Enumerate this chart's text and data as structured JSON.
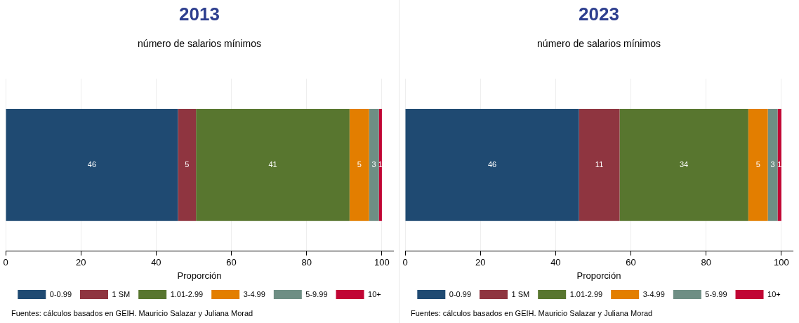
{
  "chart_data": [
    {
      "type": "bar",
      "orientation": "horizontal",
      "stacked": true,
      "title": "2013",
      "subtitle": "número de salarios mínimos",
      "xlabel": "Proporción",
      "categories": [
        null
      ],
      "xlim": [
        0,
        103
      ],
      "xticks": [
        0,
        20,
        40,
        60,
        80,
        100
      ],
      "grid": "x",
      "legend": "bottom",
      "series": [
        {
          "name": "0-0.99",
          "color": "#1f4a72",
          "values": [
            45.8
          ],
          "value_labels": [
            "46"
          ]
        },
        {
          "name": "1 SM",
          "color": "#8f3540",
          "values": [
            4.8
          ],
          "value_labels": [
            "5"
          ]
        },
        {
          "name": "1.01-2.99",
          "color": "#58762f",
          "values": [
            40.8
          ],
          "value_labels": [
            "41"
          ]
        },
        {
          "name": "3-4.99",
          "color": "#e37e00",
          "values": [
            5.2
          ],
          "value_labels": [
            "5"
          ]
        },
        {
          "name": "5-9.99",
          "color": "#6e8e84",
          "values": [
            2.6
          ],
          "value_labels": [
            "3"
          ]
        },
        {
          "name": "10+",
          "color": "#c10534",
          "values": [
            0.8
          ],
          "value_labels": [
            "1"
          ]
        }
      ],
      "annotations": [
        "Fuentes: cálculos basados en GEIH. Mauricio Salazar y Juliana Morad"
      ]
    },
    {
      "type": "bar",
      "orientation": "horizontal",
      "stacked": true,
      "title": "2023",
      "subtitle": "número de salarios mínimos",
      "xlabel": "Proporción",
      "categories": [
        null
      ],
      "xlim": [
        0,
        103
      ],
      "xticks": [
        0,
        20,
        40,
        60,
        80,
        100
      ],
      "grid": "x",
      "legend": "bottom",
      "series": [
        {
          "name": "0-0.99",
          "color": "#1f4a72",
          "values": [
            46.2
          ],
          "value_labels": [
            "46"
          ]
        },
        {
          "name": "1 SM",
          "color": "#8f3540",
          "values": [
            10.8
          ],
          "value_labels": [
            "11"
          ]
        },
        {
          "name": "1.01-2.99",
          "color": "#58762f",
          "values": [
            34.2
          ],
          "value_labels": [
            "34"
          ]
        },
        {
          "name": "3-4.99",
          "color": "#e37e00",
          "values": [
            5.2
          ],
          "value_labels": [
            "5"
          ]
        },
        {
          "name": "5-9.99",
          "color": "#6e8e84",
          "values": [
            2.6
          ],
          "value_labels": [
            "3"
          ]
        },
        {
          "name": "10+",
          "color": "#c10534",
          "values": [
            1.0
          ],
          "value_labels": [
            "1"
          ]
        }
      ],
      "annotations": [
        "Fuentes: cálculos basados en GEIH. Mauricio Salazar y Juliana Morad"
      ]
    }
  ]
}
